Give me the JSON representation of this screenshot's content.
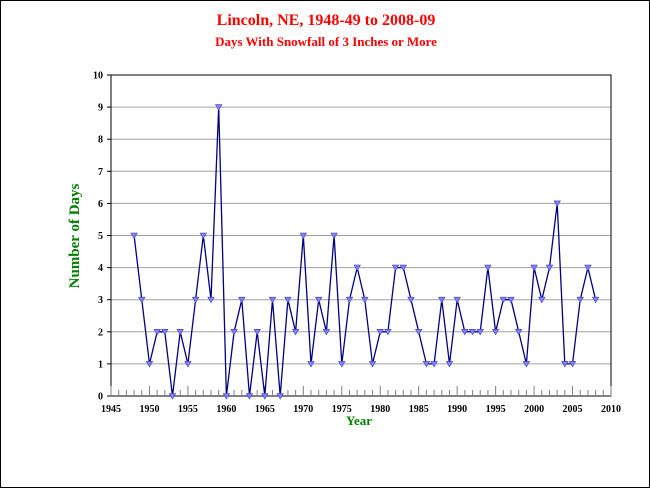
{
  "chart_data": {
    "type": "line",
    "title": "Lincoln, NE, 1948-49 to 2008-09",
    "subtitle": "Days With Snowfall of 3 Inches or More",
    "xlabel": "Year",
    "ylabel": "Number of Days",
    "xlim": [
      1945,
      2010
    ],
    "ylim": [
      0,
      10
    ],
    "x_ticks": [
      1945,
      1950,
      1955,
      1960,
      1965,
      1970,
      1975,
      1980,
      1985,
      1990,
      1995,
      2000,
      2005,
      2010
    ],
    "y_ticks": [
      0,
      1,
      2,
      3,
      4,
      5,
      6,
      7,
      8,
      9,
      10
    ],
    "grid": "horizontal",
    "legend": "none",
    "colors": {
      "line": "#000080",
      "marker": "#8080ff",
      "title": "#ff0000",
      "axis_title": "#008000",
      "grid": "#a0a0a0"
    },
    "series": [
      {
        "x": [
          1948,
          1949,
          1950,
          1951,
          1952,
          1953,
          1954,
          1955,
          1956,
          1957,
          1958,
          1959,
          1960,
          1961,
          1962,
          1963,
          1964,
          1965,
          1966,
          1967,
          1968,
          1969,
          1970,
          1971,
          1972,
          1973,
          1974,
          1975,
          1976,
          1977,
          1978,
          1979,
          1980,
          1981,
          1982,
          1983,
          1984,
          1985,
          1986,
          1987,
          1988,
          1989,
          1990,
          1991,
          1992,
          1993,
          1994,
          1995,
          1996,
          1997,
          1998,
          1999,
          2000,
          2001,
          2002,
          2003,
          2004,
          2005,
          2006,
          2007,
          2008
        ],
        "values": [
          5,
          3,
          1,
          2,
          2,
          0,
          2,
          1,
          3,
          5,
          3,
          9,
          0,
          2,
          3,
          0,
          2,
          0,
          3,
          0,
          3,
          2,
          5,
          1,
          3,
          2,
          5,
          1,
          3,
          4,
          3,
          1,
          2,
          2,
          4,
          4,
          3,
          2,
          1,
          1,
          3,
          1,
          3,
          2,
          2,
          2,
          4,
          2,
          3,
          3,
          2,
          1,
          4,
          3,
          4,
          6,
          1,
          1,
          3,
          4,
          3
        ]
      }
    ]
  }
}
